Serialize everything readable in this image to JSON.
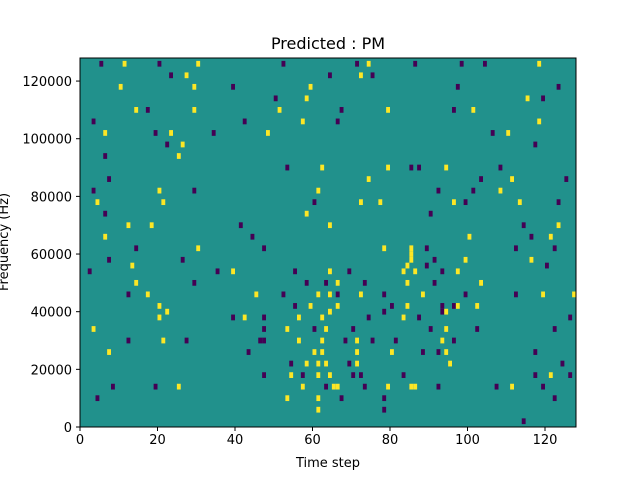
{
  "chart_data": {
    "type": "heatmap",
    "title": "Predicted : PM",
    "xlabel": "Time step",
    "ylabel": "Frequency (Hz)",
    "xlim": [
      0,
      128
    ],
    "ylim": [
      0,
      128000
    ],
    "x_ticks": [
      0,
      20,
      40,
      60,
      80,
      100,
      120
    ],
    "y_ticks": [
      0,
      20000,
      40000,
      60000,
      80000,
      100000,
      120000
    ],
    "x_tick_labels": [
      "0",
      "20",
      "40",
      "60",
      "80",
      "100",
      "120"
    ],
    "y_tick_labels": [
      "0",
      "20000",
      "40000",
      "60000",
      "80000",
      "100000",
      "120000"
    ],
    "bin_height_hz": 2000,
    "colors": {
      "background": "#21918c",
      "low": "#440154",
      "high": "#fde725"
    },
    "cells": [
      {
        "t": 5,
        "f": 126000,
        "v": -1
      },
      {
        "t": 11,
        "f": 126000,
        "v": 1
      },
      {
        "t": 20,
        "f": 126000,
        "v": -1
      },
      {
        "t": 30,
        "f": 126000,
        "v": 1
      },
      {
        "t": 52,
        "f": 126000,
        "v": -1
      },
      {
        "t": 71,
        "f": 126000,
        "v": -1
      },
      {
        "t": 74,
        "f": 126000,
        "v": 1
      },
      {
        "t": 86,
        "f": 126000,
        "v": -1
      },
      {
        "t": 98,
        "f": 126000,
        "v": -1
      },
      {
        "t": 104,
        "f": 126000,
        "v": -1
      },
      {
        "t": 118,
        "f": 126000,
        "v": 1
      },
      {
        "t": 23,
        "f": 122000,
        "v": -1
      },
      {
        "t": 27,
        "f": 122000,
        "v": 1
      },
      {
        "t": 64,
        "f": 122000,
        "v": -1
      },
      {
        "t": 72,
        "f": 122000,
        "v": 1
      },
      {
        "t": 75,
        "f": 122000,
        "v": -1
      },
      {
        "t": 10,
        "f": 118000,
        "v": 1
      },
      {
        "t": 29,
        "f": 118000,
        "v": 1
      },
      {
        "t": 39,
        "f": 118000,
        "v": -1
      },
      {
        "t": 59,
        "f": 118000,
        "v": 1
      },
      {
        "t": 97,
        "f": 118000,
        "v": -1
      },
      {
        "t": 123,
        "f": 118000,
        "v": -1
      },
      {
        "t": 50,
        "f": 114000,
        "v": -1
      },
      {
        "t": 58,
        "f": 114000,
        "v": 1
      },
      {
        "t": 115,
        "f": 114000,
        "v": 1
      },
      {
        "t": 119,
        "f": 114000,
        "v": -1
      },
      {
        "t": 14,
        "f": 110000,
        "v": 1
      },
      {
        "t": 17,
        "f": 110000,
        "v": -1
      },
      {
        "t": 29,
        "f": 110000,
        "v": 1
      },
      {
        "t": 51,
        "f": 110000,
        "v": 1
      },
      {
        "t": 67,
        "f": 110000,
        "v": -1
      },
      {
        "t": 79,
        "f": 110000,
        "v": 1
      },
      {
        "t": 96,
        "f": 110000,
        "v": -1
      },
      {
        "t": 101,
        "f": 110000,
        "v": 1
      },
      {
        "t": 3,
        "f": 106000,
        "v": -1
      },
      {
        "t": 42,
        "f": 106000,
        "v": -1
      },
      {
        "t": 57,
        "f": 106000,
        "v": 1
      },
      {
        "t": 66,
        "f": 106000,
        "v": -1
      },
      {
        "t": 118,
        "f": 106000,
        "v": 1
      },
      {
        "t": 6,
        "f": 102000,
        "v": 1
      },
      {
        "t": 19,
        "f": 102000,
        "v": -1
      },
      {
        "t": 23,
        "f": 102000,
        "v": 1
      },
      {
        "t": 34,
        "f": 102000,
        "v": -1
      },
      {
        "t": 48,
        "f": 102000,
        "v": 1
      },
      {
        "t": 106,
        "f": 102000,
        "v": -1
      },
      {
        "t": 110,
        "f": 102000,
        "v": 1
      },
      {
        "t": 22,
        "f": 98000,
        "v": -1
      },
      {
        "t": 26,
        "f": 98000,
        "v": 1
      },
      {
        "t": 117,
        "f": 98000,
        "v": -1
      },
      {
        "t": 6,
        "f": 94000,
        "v": -1
      },
      {
        "t": 25,
        "f": 94000,
        "v": 1
      },
      {
        "t": 53,
        "f": 90000,
        "v": -1
      },
      {
        "t": 62,
        "f": 90000,
        "v": 1
      },
      {
        "t": 79,
        "f": 90000,
        "v": 1
      },
      {
        "t": 85,
        "f": 90000,
        "v": -1
      },
      {
        "t": 87,
        "f": 90000,
        "v": -1
      },
      {
        "t": 94,
        "f": 90000,
        "v": 1
      },
      {
        "t": 108,
        "f": 90000,
        "v": -1
      },
      {
        "t": 7,
        "f": 86000,
        "v": -1
      },
      {
        "t": 74,
        "f": 86000,
        "v": 1
      },
      {
        "t": 103,
        "f": 86000,
        "v": -1
      },
      {
        "t": 111,
        "f": 86000,
        "v": 1
      },
      {
        "t": 125,
        "f": 86000,
        "v": -1
      },
      {
        "t": 3,
        "f": 82000,
        "v": -1
      },
      {
        "t": 20,
        "f": 82000,
        "v": 1
      },
      {
        "t": 29,
        "f": 82000,
        "v": -1
      },
      {
        "t": 61,
        "f": 82000,
        "v": 1
      },
      {
        "t": 92,
        "f": 82000,
        "v": -1
      },
      {
        "t": 101,
        "f": 82000,
        "v": -1
      },
      {
        "t": 108,
        "f": 82000,
        "v": 1
      },
      {
        "t": 4,
        "f": 78000,
        "v": 1
      },
      {
        "t": 21,
        "f": 78000,
        "v": 1
      },
      {
        "t": 60,
        "f": 78000,
        "v": -1
      },
      {
        "t": 72,
        "f": 78000,
        "v": 1
      },
      {
        "t": 77,
        "f": 78000,
        "v": 1
      },
      {
        "t": 96,
        "f": 78000,
        "v": 1
      },
      {
        "t": 99,
        "f": 78000,
        "v": -1
      },
      {
        "t": 113,
        "f": 78000,
        "v": 1
      },
      {
        "t": 123,
        "f": 78000,
        "v": -1
      },
      {
        "t": 6,
        "f": 74000,
        "v": -1
      },
      {
        "t": 58,
        "f": 74000,
        "v": 1
      },
      {
        "t": 90,
        "f": 74000,
        "v": -1
      },
      {
        "t": 12,
        "f": 70000,
        "v": 1
      },
      {
        "t": 18,
        "f": 70000,
        "v": 1
      },
      {
        "t": 41,
        "f": 70000,
        "v": -1
      },
      {
        "t": 64,
        "f": 70000,
        "v": 1
      },
      {
        "t": 114,
        "f": 70000,
        "v": -1
      },
      {
        "t": 123,
        "f": 70000,
        "v": 1
      },
      {
        "t": 6,
        "f": 66000,
        "v": 1
      },
      {
        "t": 44,
        "f": 66000,
        "v": -1
      },
      {
        "t": 100,
        "f": 66000,
        "v": 1
      },
      {
        "t": 116,
        "f": 66000,
        "v": -1
      },
      {
        "t": 121,
        "f": 66000,
        "v": 1
      },
      {
        "t": 14,
        "f": 62000,
        "v": -1
      },
      {
        "t": 30,
        "f": 62000,
        "v": 1
      },
      {
        "t": 47,
        "f": 62000,
        "v": -1
      },
      {
        "t": 78,
        "f": 62000,
        "v": 1
      },
      {
        "t": 85,
        "f": 62000,
        "v": 1
      },
      {
        "t": 89,
        "f": 62000,
        "v": -1
      },
      {
        "t": 112,
        "f": 62000,
        "v": -1
      },
      {
        "t": 122,
        "f": 62000,
        "v": -1
      },
      {
        "t": 85,
        "f": 60000,
        "v": 1
      },
      {
        "t": 7,
        "f": 58000,
        "v": -1
      },
      {
        "t": 26,
        "f": 58000,
        "v": -1
      },
      {
        "t": 85,
        "f": 58000,
        "v": 1
      },
      {
        "t": 91,
        "f": 58000,
        "v": -1
      },
      {
        "t": 99,
        "f": 58000,
        "v": 1
      },
      {
        "t": 116,
        "f": 58000,
        "v": 1
      },
      {
        "t": 13,
        "f": 56000,
        "v": 1
      },
      {
        "t": 84,
        "f": 56000,
        "v": 1
      },
      {
        "t": 89,
        "f": 56000,
        "v": -1
      },
      {
        "t": 120,
        "f": 56000,
        "v": -1
      },
      {
        "t": 2,
        "f": 54000,
        "v": -1
      },
      {
        "t": 35,
        "f": 54000,
        "v": -1
      },
      {
        "t": 39,
        "f": 54000,
        "v": 1
      },
      {
        "t": 55,
        "f": 54000,
        "v": -1
      },
      {
        "t": 64,
        "f": 54000,
        "v": 1
      },
      {
        "t": 69,
        "f": 54000,
        "v": -1
      },
      {
        "t": 83,
        "f": 54000,
        "v": 1
      },
      {
        "t": 86,
        "f": 54000,
        "v": 1
      },
      {
        "t": 93,
        "f": 54000,
        "v": -1
      },
      {
        "t": 97,
        "f": 54000,
        "v": 1
      },
      {
        "t": 14,
        "f": 50000,
        "v": 1
      },
      {
        "t": 29,
        "f": 50000,
        "v": -1
      },
      {
        "t": 58,
        "f": 50000,
        "v": -1
      },
      {
        "t": 63,
        "f": 50000,
        "v": -1
      },
      {
        "t": 66,
        "f": 50000,
        "v": 1
      },
      {
        "t": 73,
        "f": 50000,
        "v": -1
      },
      {
        "t": 84,
        "f": 50000,
        "v": 1
      },
      {
        "t": 91,
        "f": 50000,
        "v": -1
      },
      {
        "t": 103,
        "f": 50000,
        "v": 1
      },
      {
        "t": 12,
        "f": 46000,
        "v": -1
      },
      {
        "t": 17,
        "f": 46000,
        "v": 1
      },
      {
        "t": 45,
        "f": 46000,
        "v": 1
      },
      {
        "t": 52,
        "f": 46000,
        "v": -1
      },
      {
        "t": 61,
        "f": 46000,
        "v": 1
      },
      {
        "t": 64,
        "f": 46000,
        "v": 1
      },
      {
        "t": 66,
        "f": 46000,
        "v": -1
      },
      {
        "t": 72,
        "f": 46000,
        "v": 1
      },
      {
        "t": 78,
        "f": 46000,
        "v": -1
      },
      {
        "t": 88,
        "f": 46000,
        "v": 1
      },
      {
        "t": 99,
        "f": 46000,
        "v": -1
      },
      {
        "t": 112,
        "f": 46000,
        "v": -1
      },
      {
        "t": 119,
        "f": 46000,
        "v": 1
      },
      {
        "t": 127,
        "f": 46000,
        "v": 1
      },
      {
        "t": 20,
        "f": 42000,
        "v": 1
      },
      {
        "t": 55,
        "f": 42000,
        "v": -1
      },
      {
        "t": 59,
        "f": 42000,
        "v": 1
      },
      {
        "t": 66,
        "f": 42000,
        "v": 1
      },
      {
        "t": 80,
        "f": 42000,
        "v": -1
      },
      {
        "t": 84,
        "f": 42000,
        "v": 1
      },
      {
        "t": 93,
        "f": 42000,
        "v": -1
      },
      {
        "t": 96,
        "f": 42000,
        "v": -1
      },
      {
        "t": 97,
        "f": 42000,
        "v": 1
      },
      {
        "t": 102,
        "f": 42000,
        "v": 1
      },
      {
        "t": 22,
        "f": 40000,
        "v": 1
      },
      {
        "t": 64,
        "f": 40000,
        "v": 1
      },
      {
        "t": 78,
        "f": 40000,
        "v": -1
      },
      {
        "t": 93,
        "f": 40000,
        "v": -1
      },
      {
        "t": 94,
        "f": 40000,
        "v": 1
      },
      {
        "t": 20,
        "f": 38000,
        "v": 1
      },
      {
        "t": 39,
        "f": 38000,
        "v": -1
      },
      {
        "t": 42,
        "f": 38000,
        "v": 1
      },
      {
        "t": 47,
        "f": 38000,
        "v": -1
      },
      {
        "t": 56,
        "f": 38000,
        "v": 1
      },
      {
        "t": 62,
        "f": 38000,
        "v": 1
      },
      {
        "t": 74,
        "f": 38000,
        "v": -1
      },
      {
        "t": 83,
        "f": 38000,
        "v": 1
      },
      {
        "t": 87,
        "f": 38000,
        "v": -1
      },
      {
        "t": 126,
        "f": 38000,
        "v": -1
      },
      {
        "t": 3,
        "f": 34000,
        "v": 1
      },
      {
        "t": 47,
        "f": 34000,
        "v": -1
      },
      {
        "t": 53,
        "f": 34000,
        "v": 1
      },
      {
        "t": 60,
        "f": 34000,
        "v": -1
      },
      {
        "t": 63,
        "f": 34000,
        "v": 1
      },
      {
        "t": 70,
        "f": 34000,
        "v": -1
      },
      {
        "t": 90,
        "f": 34000,
        "v": -1
      },
      {
        "t": 94,
        "f": 34000,
        "v": 1
      },
      {
        "t": 102,
        "f": 34000,
        "v": -1
      },
      {
        "t": 122,
        "f": 34000,
        "v": -1
      },
      {
        "t": 12,
        "f": 30000,
        "v": -1
      },
      {
        "t": 21,
        "f": 30000,
        "v": 1
      },
      {
        "t": 27,
        "f": 30000,
        "v": -1
      },
      {
        "t": 46,
        "f": 30000,
        "v": -1
      },
      {
        "t": 47,
        "f": 30000,
        "v": -1
      },
      {
        "t": 56,
        "f": 30000,
        "v": 1
      },
      {
        "t": 62,
        "f": 30000,
        "v": 1
      },
      {
        "t": 68,
        "f": 30000,
        "v": -1
      },
      {
        "t": 71,
        "f": 30000,
        "v": 1
      },
      {
        "t": 75,
        "f": 30000,
        "v": -1
      },
      {
        "t": 81,
        "f": 30000,
        "v": -1
      },
      {
        "t": 93,
        "f": 30000,
        "v": 1
      },
      {
        "t": 96,
        "f": 30000,
        "v": -1
      },
      {
        "t": 7,
        "f": 26000,
        "v": 1
      },
      {
        "t": 43,
        "f": 26000,
        "v": -1
      },
      {
        "t": 60,
        "f": 26000,
        "v": 1
      },
      {
        "t": 62,
        "f": 26000,
        "v": 1
      },
      {
        "t": 71,
        "f": 26000,
        "v": 1
      },
      {
        "t": 80,
        "f": 26000,
        "v": 1
      },
      {
        "t": 88,
        "f": 26000,
        "v": -1
      },
      {
        "t": 92,
        "f": 26000,
        "v": -1
      },
      {
        "t": 94,
        "f": 26000,
        "v": 1
      },
      {
        "t": 117,
        "f": 26000,
        "v": -1
      },
      {
        "t": 54,
        "f": 22000,
        "v": -1
      },
      {
        "t": 58,
        "f": 22000,
        "v": 1
      },
      {
        "t": 61,
        "f": 22000,
        "v": 1
      },
      {
        "t": 63,
        "f": 22000,
        "v": 1
      },
      {
        "t": 69,
        "f": 22000,
        "v": -1
      },
      {
        "t": 71,
        "f": 22000,
        "v": 1
      },
      {
        "t": 95,
        "f": 22000,
        "v": 1
      },
      {
        "t": 124,
        "f": 22000,
        "v": -1
      },
      {
        "t": 47,
        "f": 18000,
        "v": -1
      },
      {
        "t": 54,
        "f": 18000,
        "v": 1
      },
      {
        "t": 57,
        "f": 18000,
        "v": -1
      },
      {
        "t": 61,
        "f": 18000,
        "v": 1
      },
      {
        "t": 64,
        "f": 18000,
        "v": 1
      },
      {
        "t": 70,
        "f": 18000,
        "v": -1
      },
      {
        "t": 72,
        "f": 18000,
        "v": -1
      },
      {
        "t": 83,
        "f": 18000,
        "v": -1
      },
      {
        "t": 117,
        "f": 18000,
        "v": -1
      },
      {
        "t": 121,
        "f": 18000,
        "v": 1
      },
      {
        "t": 126,
        "f": 18000,
        "v": -1
      },
      {
        "t": 8,
        "f": 14000,
        "v": -1
      },
      {
        "t": 19,
        "f": 14000,
        "v": -1
      },
      {
        "t": 25,
        "f": 14000,
        "v": 1
      },
      {
        "t": 57,
        "f": 14000,
        "v": 1
      },
      {
        "t": 63,
        "f": 14000,
        "v": -1
      },
      {
        "t": 65,
        "f": 14000,
        "v": 1
      },
      {
        "t": 66,
        "f": 14000,
        "v": 1
      },
      {
        "t": 73,
        "f": 14000,
        "v": -1
      },
      {
        "t": 79,
        "f": 14000,
        "v": 1
      },
      {
        "t": 85,
        "f": 14000,
        "v": 1
      },
      {
        "t": 86,
        "f": 14000,
        "v": 1
      },
      {
        "t": 92,
        "f": 14000,
        "v": -1
      },
      {
        "t": 107,
        "f": 14000,
        "v": -1
      },
      {
        "t": 111,
        "f": 14000,
        "v": 1
      },
      {
        "t": 119,
        "f": 14000,
        "v": -1
      },
      {
        "t": 4,
        "f": 10000,
        "v": -1
      },
      {
        "t": 53,
        "f": 10000,
        "v": 1
      },
      {
        "t": 61,
        "f": 10000,
        "v": 1
      },
      {
        "t": 67,
        "f": 10000,
        "v": -1
      },
      {
        "t": 78,
        "f": 10000,
        "v": -1
      },
      {
        "t": 122,
        "f": 10000,
        "v": -1
      },
      {
        "t": 61,
        "f": 6000,
        "v": 1
      },
      {
        "t": 78,
        "f": 6000,
        "v": -1
      },
      {
        "t": 114,
        "f": 2000,
        "v": -1
      }
    ]
  }
}
